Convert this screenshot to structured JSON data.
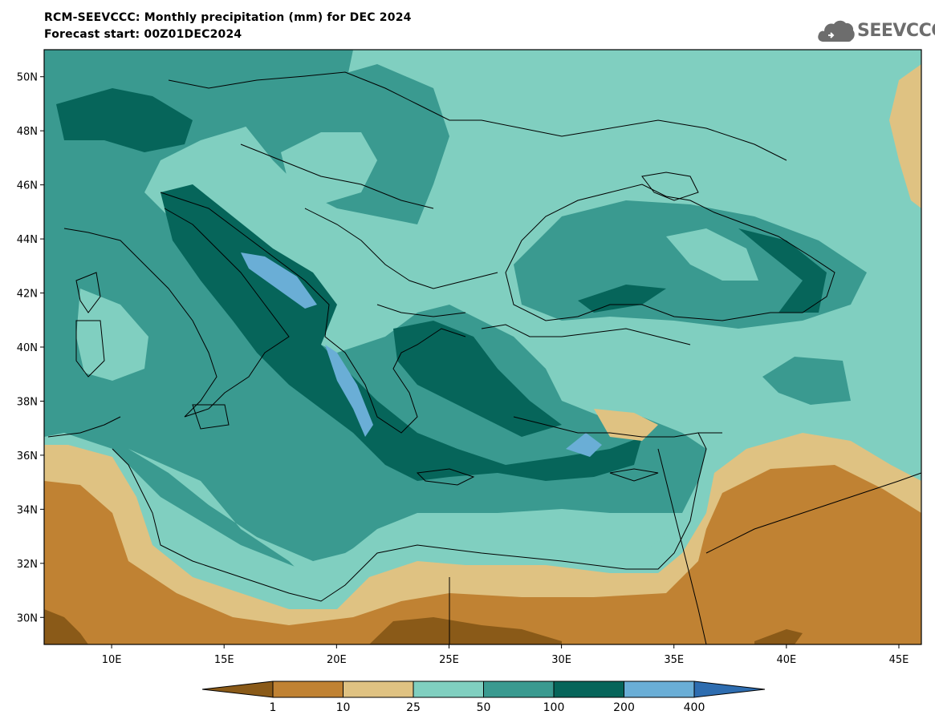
{
  "header": {
    "title": "RCM-SEEVCCC: Monthly precipitation (mm) for DEC 2024",
    "subtitle": "Forecast start: 00Z01DEC2024"
  },
  "logo": {
    "text": "SEEVCCC",
    "icon": "cloud-icon"
  },
  "map": {
    "lon_range": [
      7,
      46
    ],
    "lat_range": [
      29,
      51
    ],
    "lon_ticks": [
      "10E",
      "15E",
      "20E",
      "25E",
      "30E",
      "35E",
      "40E",
      "45E"
    ],
    "lat_ticks": [
      "50N",
      "48N",
      "46N",
      "44N",
      "42N",
      "40N",
      "38N",
      "36N",
      "34N",
      "32N",
      "30N"
    ]
  },
  "colorbar": {
    "labels": [
      "1",
      "10",
      "25",
      "50",
      "100",
      "200",
      "400"
    ],
    "colors": [
      "#8a5a18",
      "#c08233",
      "#dfc282",
      "#80cfc0",
      "#3a9a90",
      "#06655a",
      "#6aaed6",
      "#2e6db0"
    ]
  }
}
